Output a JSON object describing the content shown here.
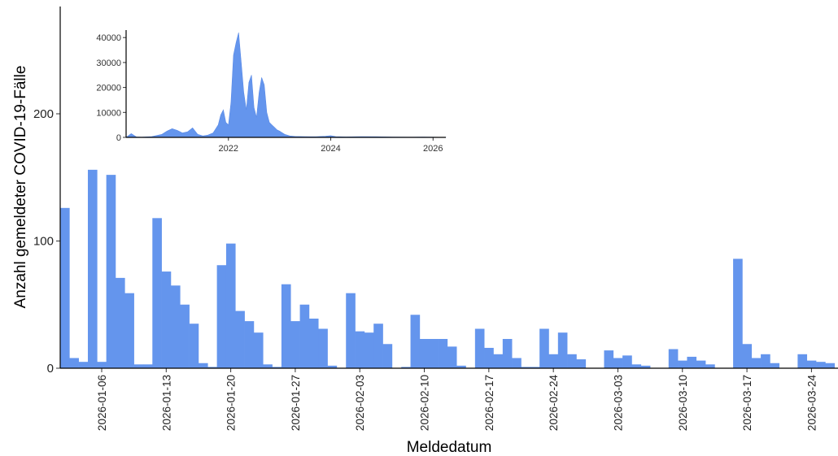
{
  "chart_data": [
    {
      "type": "bar",
      "title": "",
      "xlabel": "Meldedatum",
      "ylabel": "Anzahl gemeldeter COVID-19-Fälle",
      "ylim": [
        0,
        280
      ],
      "yticks": [
        0,
        100,
        200
      ],
      "bar_color": "#6495ED",
      "grid": false,
      "x_start": "2026-01-02",
      "x_tick_labels": [
        "2026-01-06",
        "2026-01-13",
        "2026-01-20",
        "2026-01-27",
        "2026-02-03",
        "2026-02-10",
        "2026-02-17",
        "2026-02-24",
        "2026-03-03",
        "2026-03-10",
        "2026-03-17",
        "2026-03-24"
      ],
      "values": [
        126,
        8,
        5,
        156,
        5,
        152,
        71,
        59,
        3,
        3,
        118,
        76,
        65,
        50,
        35,
        4,
        1,
        81,
        98,
        45,
        37,
        28,
        3,
        1,
        66,
        37,
        50,
        39,
        31,
        2,
        0,
        59,
        29,
        28,
        35,
        19,
        0,
        1,
        42,
        23,
        23,
        23,
        17,
        2,
        0,
        31,
        16,
        11,
        23,
        8,
        1,
        1,
        31,
        11,
        28,
        11,
        7,
        0,
        0,
        14,
        8,
        10,
        3,
        2,
        0,
        0,
        15,
        6,
        9,
        6,
        3,
        0,
        0,
        86,
        19,
        8,
        11,
        4,
        0,
        0,
        11,
        6,
        5,
        4
      ]
    },
    {
      "type": "area",
      "title": "",
      "xlim": [
        2020.0,
        2026.25
      ],
      "ylim": [
        0,
        43000
      ],
      "yticks": [
        "0",
        "10000",
        "20000",
        "30000",
        "40000"
      ],
      "xticks": [
        "2022",
        "2024",
        "2026"
      ],
      "color": "#6495ED",
      "x": [
        2020.0,
        2020.1,
        2020.2,
        2020.3,
        2020.5,
        2020.7,
        2020.8,
        2020.9,
        2021.0,
        2021.1,
        2021.2,
        2021.3,
        2021.4,
        2021.5,
        2021.6,
        2021.7,
        2021.8,
        2021.85,
        2021.9,
        2021.95,
        2022.0,
        2022.05,
        2022.1,
        2022.15,
        2022.2,
        2022.25,
        2022.3,
        2022.35,
        2022.4,
        2022.45,
        2022.5,
        2022.55,
        2022.6,
        2022.65,
        2022.7,
        2022.75,
        2022.8,
        2022.85,
        2022.9,
        2022.95,
        2023.0,
        2023.1,
        2023.2,
        2023.3,
        2023.5,
        2023.7,
        2023.9,
        2024.0,
        2024.1,
        2024.3,
        2024.6,
        2024.9,
        2025.2,
        2025.5,
        2025.8,
        2026.1,
        2026.25
      ],
      "y": [
        0,
        1500,
        200,
        100,
        300,
        1200,
        2500,
        3500,
        2800,
        1800,
        2200,
        3800,
        1200,
        600,
        900,
        1800,
        5000,
        9000,
        11000,
        6000,
        5000,
        14000,
        33000,
        38000,
        42000,
        30000,
        18000,
        11000,
        22000,
        25000,
        12000,
        8000,
        18000,
        24000,
        21000,
        10000,
        6000,
        5000,
        4000,
        3000,
        2500,
        1200,
        600,
        400,
        300,
        250,
        500,
        700,
        300,
        200,
        300,
        250,
        150,
        100,
        120,
        80,
        60
      ]
    }
  ]
}
